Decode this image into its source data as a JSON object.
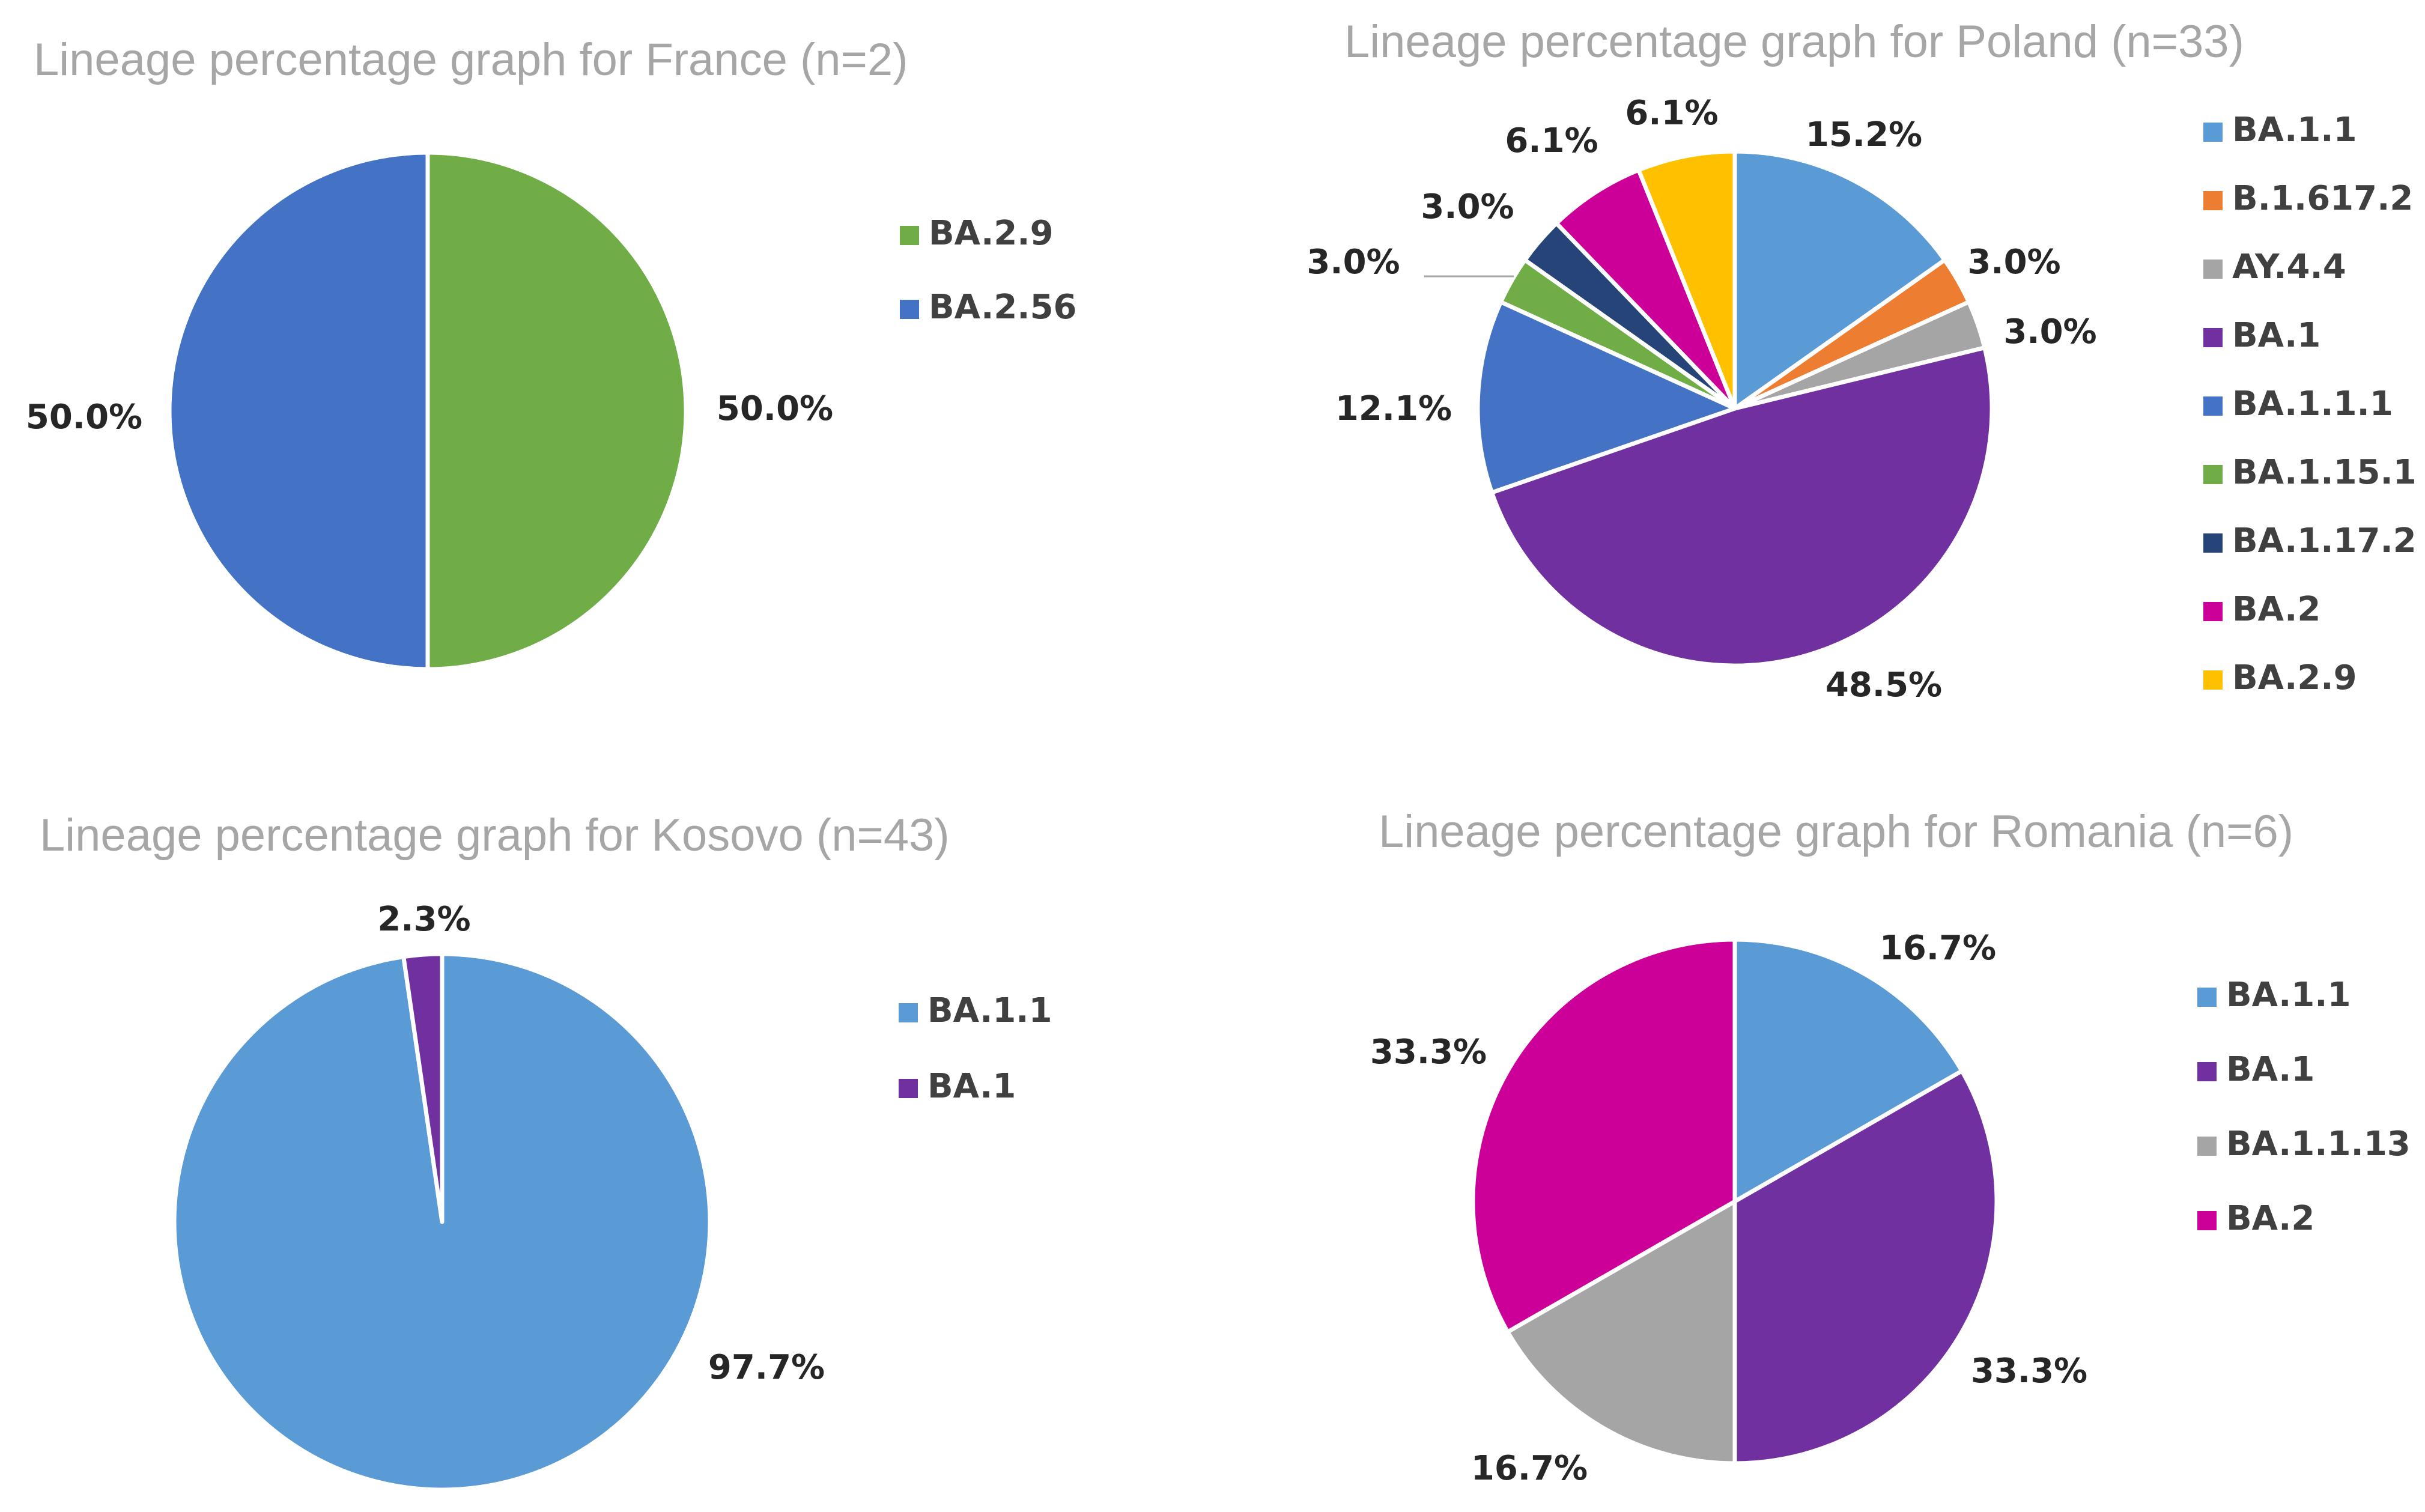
{
  "chart_data": [
    {
      "type": "pie",
      "title": "Lineage percentage graph for France (n=2)",
      "slices": [
        {
          "label": "BA.2.9",
          "value": 50.0,
          "display": "50.0%",
          "color": "#70ad47"
        },
        {
          "label": "BA.2.56",
          "value": 50.0,
          "display": "50.0%",
          "color": "#4472c4"
        }
      ],
      "legend": "right"
    },
    {
      "type": "pie",
      "title": "Lineage percentage graph for Poland (n=33)",
      "slices": [
        {
          "label": "BA.1.1",
          "value": 15.2,
          "display": "15.2%",
          "color": "#5b9bd5"
        },
        {
          "label": "B.1.617.2",
          "value": 3.0,
          "display": "3.0%",
          "color": "#ed7d31"
        },
        {
          "label": "AY.4.4",
          "value": 3.0,
          "display": "3.0%",
          "color": "#a5a5a5"
        },
        {
          "label": "BA.1",
          "value": 48.5,
          "display": "48.5%",
          "color": "#7030a0"
        },
        {
          "label": "BA.1.1.1",
          "value": 12.1,
          "display": "12.1%",
          "color": "#4472c4"
        },
        {
          "label": "BA.1.15.1",
          "value": 3.0,
          "display": "3.0%",
          "color": "#70ad47"
        },
        {
          "label": "BA.1.17.2",
          "value": 3.0,
          "display": "3.0%",
          "color": "#264478"
        },
        {
          "label": "BA.2",
          "value": 6.1,
          "display": "6.1%",
          "color": "#cc0099"
        },
        {
          "label": "BA.2.9",
          "value": 6.1,
          "display": "6.1%",
          "color": "#ffc000"
        }
      ],
      "legend": "right"
    },
    {
      "type": "pie",
      "title": "Lineage percentage graph for Kosovo (n=43)",
      "slices": [
        {
          "label": "BA.1.1",
          "value": 97.7,
          "display": "97.7%",
          "color": "#5b9bd5"
        },
        {
          "label": "BA.1",
          "value": 2.3,
          "display": "2.3%",
          "color": "#7030a0"
        }
      ],
      "legend": "right"
    },
    {
      "type": "pie",
      "title": "Lineage percentage graph for Romania (n=6)",
      "slices": [
        {
          "label": "BA.1.1",
          "value": 16.7,
          "display": "16.7%",
          "color": "#5b9bd5"
        },
        {
          "label": "BA.1",
          "value": 33.3,
          "display": "33.3%",
          "color": "#7030a0"
        },
        {
          "label": "BA.1.1.13",
          "value": 16.7,
          "display": "16.7%",
          "color": "#a5a5a5"
        },
        {
          "label": "BA.2",
          "value": 33.3,
          "display": "33.3%",
          "color": "#cc0099"
        }
      ],
      "legend": "right"
    }
  ]
}
